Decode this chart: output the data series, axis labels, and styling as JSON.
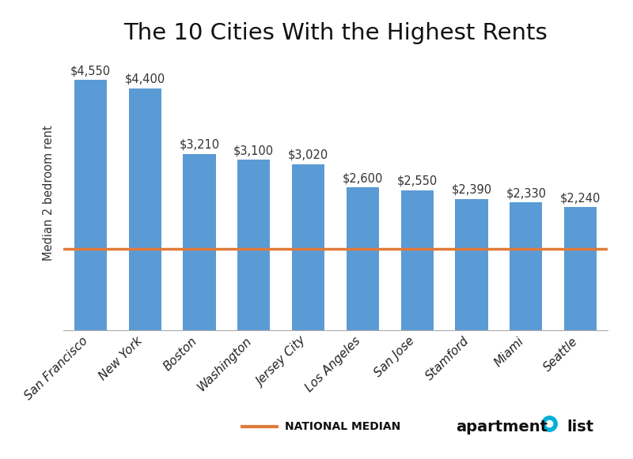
{
  "title": "The 10 Cities With the Highest Rents",
  "ylabel": "Median 2 bedroom rent",
  "categories": [
    "San Francisco",
    "New York",
    "Boston",
    "Washington",
    "Jersey City",
    "Los Angeles",
    "San Jose",
    "Stamford",
    "Miami",
    "Seattle"
  ],
  "values": [
    4550,
    4400,
    3210,
    3100,
    3020,
    2600,
    2550,
    2390,
    2330,
    2240
  ],
  "labels": [
    "$4,550",
    "$4,400",
    "$3,210",
    "$3,100",
    "$3,020",
    "$2,600",
    "$2,550",
    "$2,390",
    "$2,330",
    "$2,240"
  ],
  "bar_color": "#5B9BD5",
  "national_median": 1480,
  "national_median_color": "#E07B39",
  "national_median_label": "NATIONAL MEDIAN",
  "ylim": [
    0,
    5000
  ],
  "title_fontsize": 21,
  "label_fontsize": 10.5,
  "ylabel_fontsize": 10.5,
  "tick_fontsize": 11,
  "background_color": "#FFFFFF"
}
